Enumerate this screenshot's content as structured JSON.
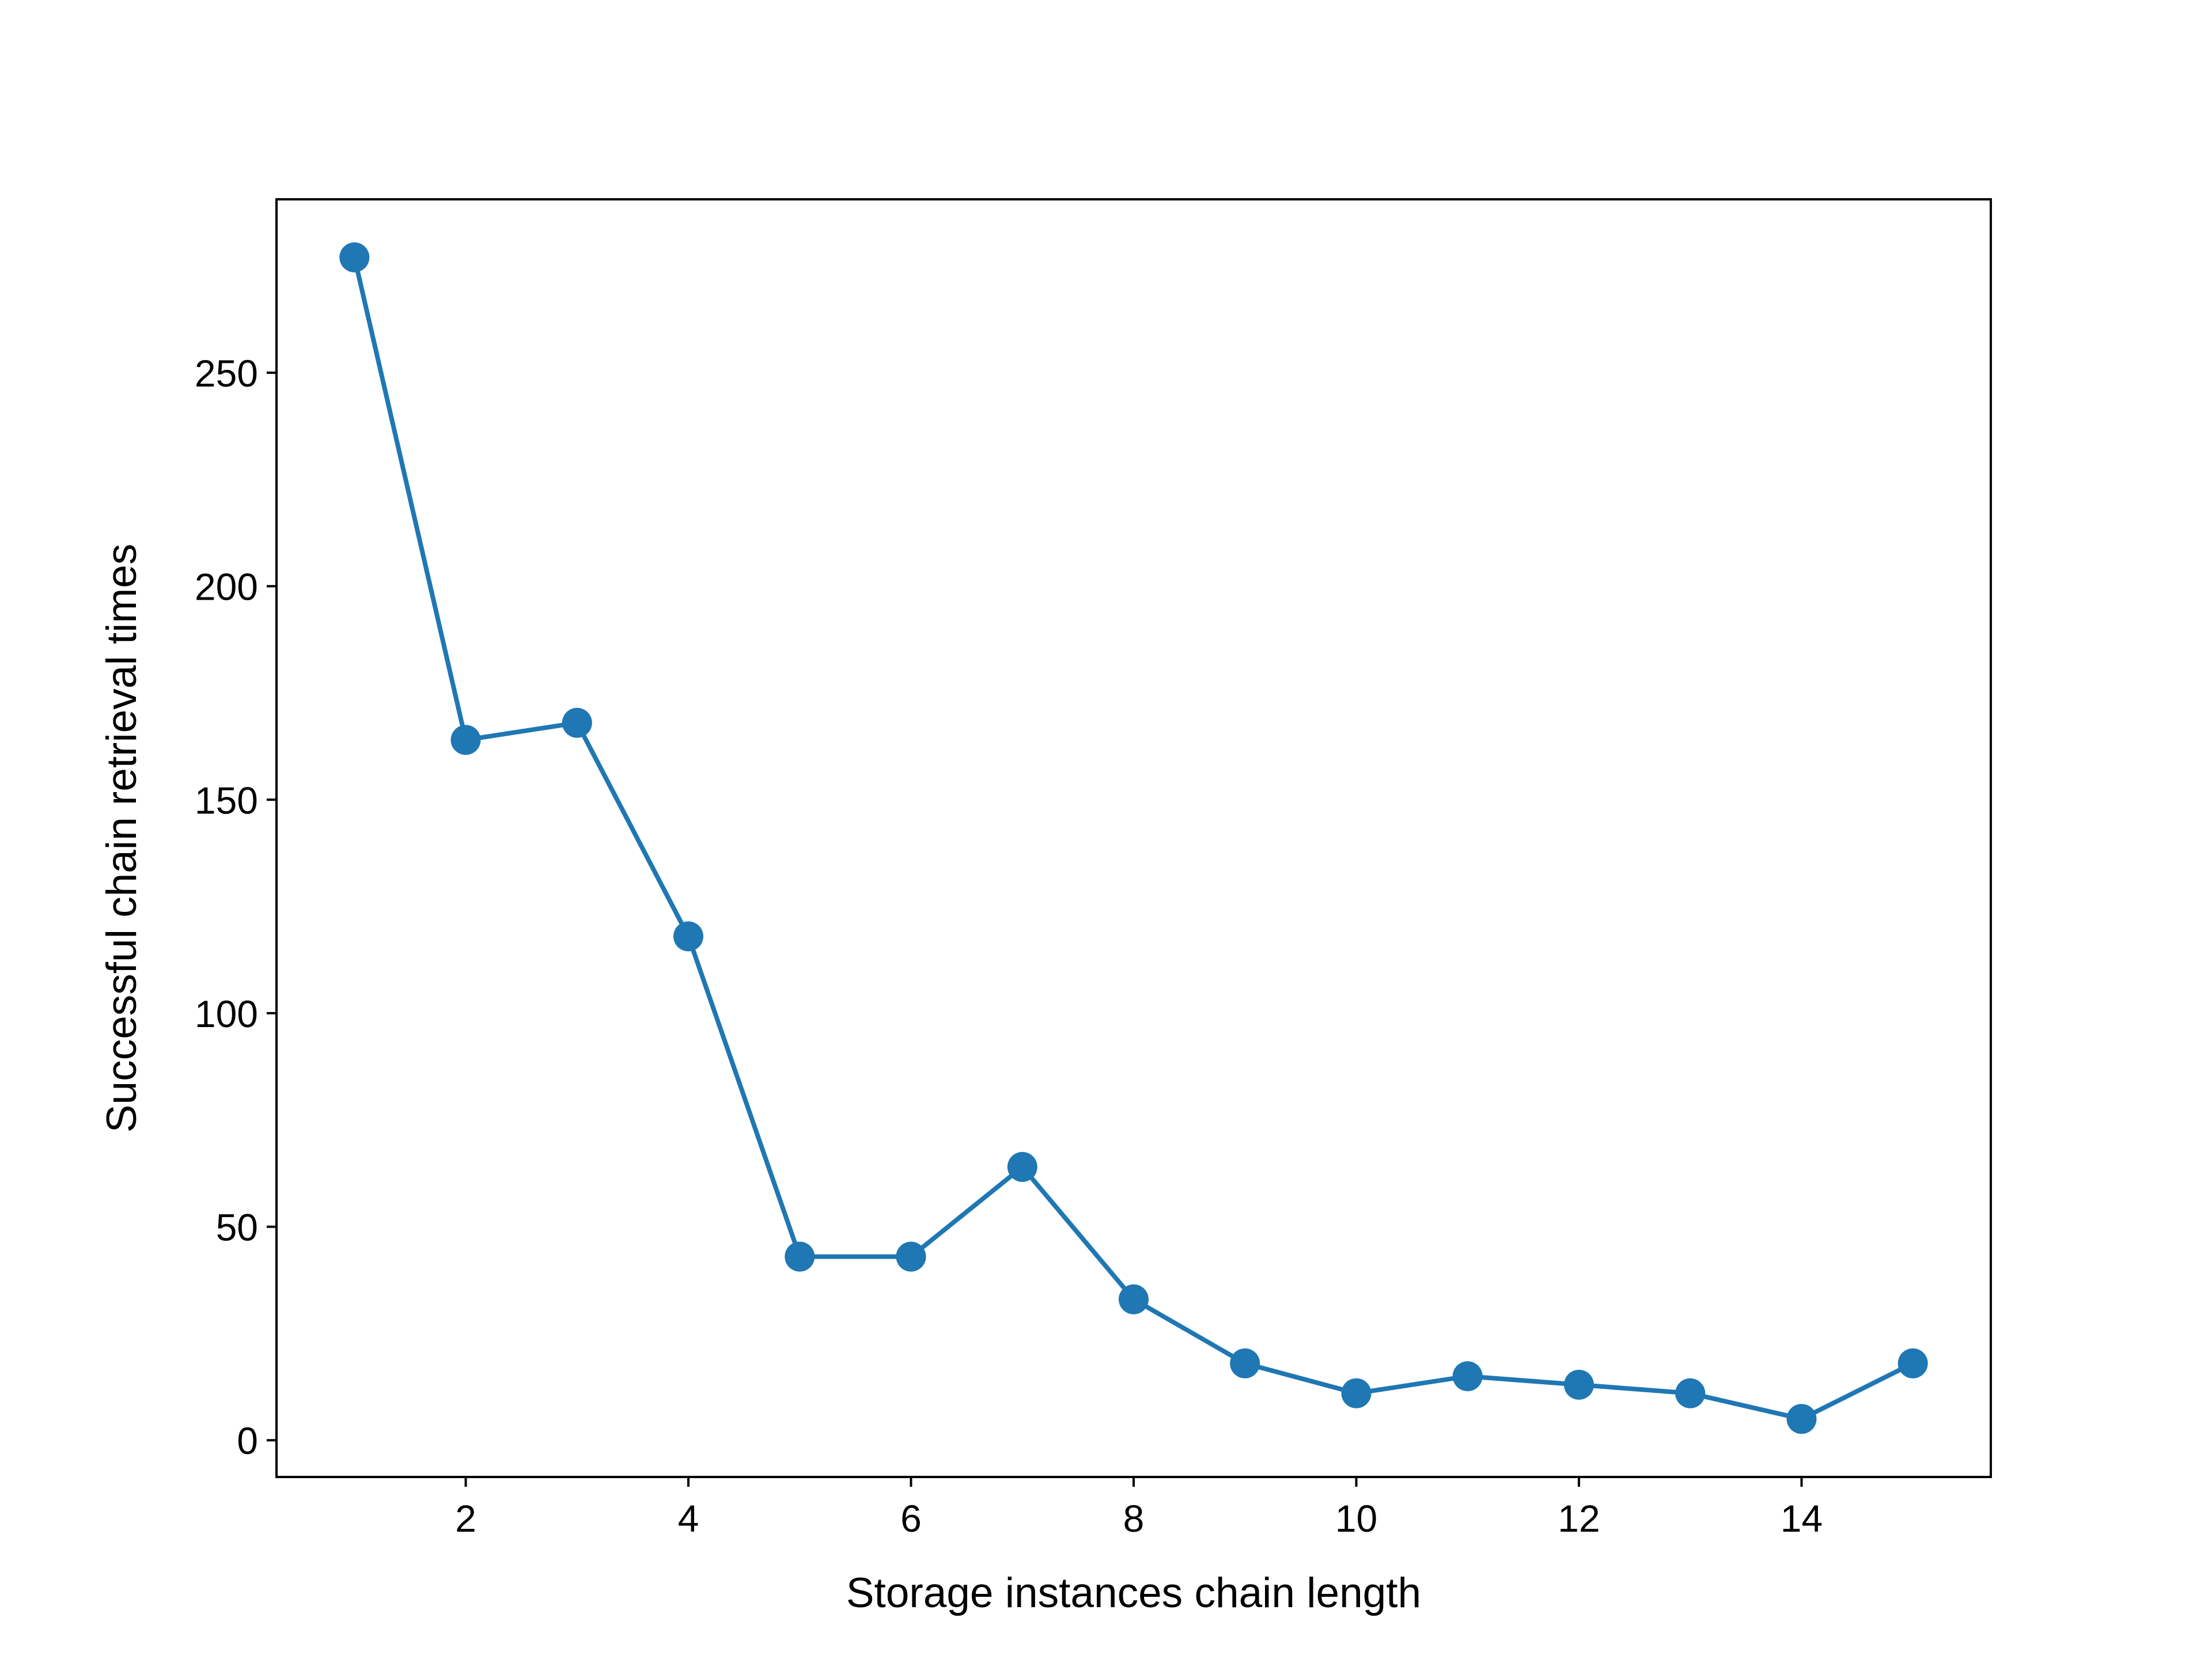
{
  "chart_data": {
    "type": "line",
    "title": "",
    "xlabel": "Storage instances chain length",
    "ylabel": "Successful chain retrieval times",
    "x": [
      1,
      2,
      3,
      4,
      5,
      6,
      7,
      8,
      9,
      10,
      11,
      12,
      13,
      14,
      15
    ],
    "series": [
      {
        "values": [
          277,
          164,
          168,
          118,
          43,
          43,
          64,
          33,
          18,
          11,
          15,
          13,
          11,
          5,
          18
        ],
        "color": "#1f77b4",
        "marker": "circle"
      }
    ],
    "xlim": [
      0.3,
      15.7
    ],
    "ylim": [
      -8.6,
      290.6
    ],
    "xticks": [
      2,
      4,
      6,
      8,
      10,
      12,
      14
    ],
    "xtick_labels": [
      "2",
      "4",
      "6",
      "8",
      "10",
      "12",
      "14"
    ],
    "yticks": [
      0,
      50,
      100,
      150,
      200,
      250
    ],
    "ytick_labels": [
      "0",
      "50",
      "100",
      "150",
      "200",
      "250"
    ],
    "grid": false,
    "legend": "none"
  }
}
